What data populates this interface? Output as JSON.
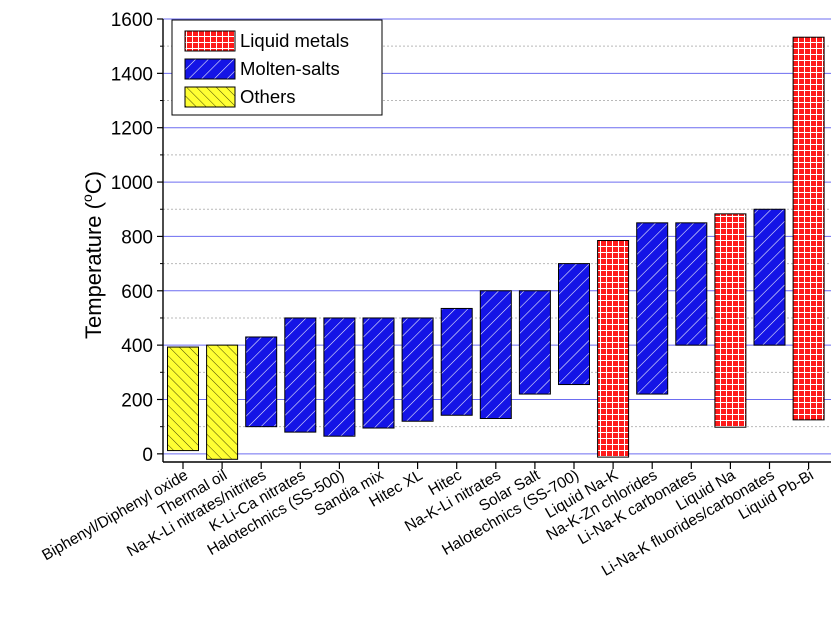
{
  "chart_data": {
    "type": "bar",
    "subtype": "floating-range",
    "title": "",
    "xlabel": "",
    "ylabel": "Temperature (°C)",
    "ylabel_parts": {
      "main": "Temperature (",
      "super": "o",
      "unit": "C)"
    },
    "ylim": [
      -30,
      1600
    ],
    "yticks": [
      0,
      200,
      400,
      600,
      800,
      1000,
      1200,
      1400,
      1600
    ],
    "grid": {
      "major": true,
      "minor": true,
      "color": "#6d6df0"
    },
    "legend_placement": "top-left",
    "legend": [
      {
        "name": "Liquid metals",
        "color": "#ff1a1a",
        "pattern": "grid"
      },
      {
        "name": "Molten-salts",
        "color": "#1414e6",
        "pattern": "diagonal"
      },
      {
        "name": "Others",
        "color": "#ffff33",
        "pattern": "hatch"
      }
    ],
    "categories": [
      "Biphenyl/Diphenyl oxide",
      "Thermal oil",
      "Na-K-Li nitrates/nitrites",
      "K-Li-Ca nitrates",
      "Halotechnics (SS-500)",
      "Sandia mix",
      "Hitec XL",
      "Hitec",
      "Na-K-Li nitrates",
      "Solar Salt",
      "Halotechnics (SS-700)",
      "Liquid Na-K",
      "Na-K-Zn chlorides",
      "Li-Na-K carbonates",
      "Liquid Na",
      "Li-Na-K fluorides/carbonates",
      "Liquid Pb-Bi"
    ],
    "series_index": [
      2,
      2,
      1,
      1,
      1,
      1,
      1,
      1,
      1,
      1,
      1,
      0,
      1,
      1,
      0,
      1,
      0
    ],
    "ranges": [
      [
        12,
        393
      ],
      [
        -20,
        400
      ],
      [
        100,
        430
      ],
      [
        80,
        500
      ],
      [
        65,
        500
      ],
      [
        95,
        500
      ],
      [
        120,
        500
      ],
      [
        142,
        535
      ],
      [
        130,
        600
      ],
      [
        220,
        600
      ],
      [
        255,
        700
      ],
      [
        -12,
        785
      ],
      [
        220,
        850
      ],
      [
        400,
        850
      ],
      [
        98,
        883
      ],
      [
        400,
        900
      ],
      [
        125,
        1533
      ]
    ]
  }
}
